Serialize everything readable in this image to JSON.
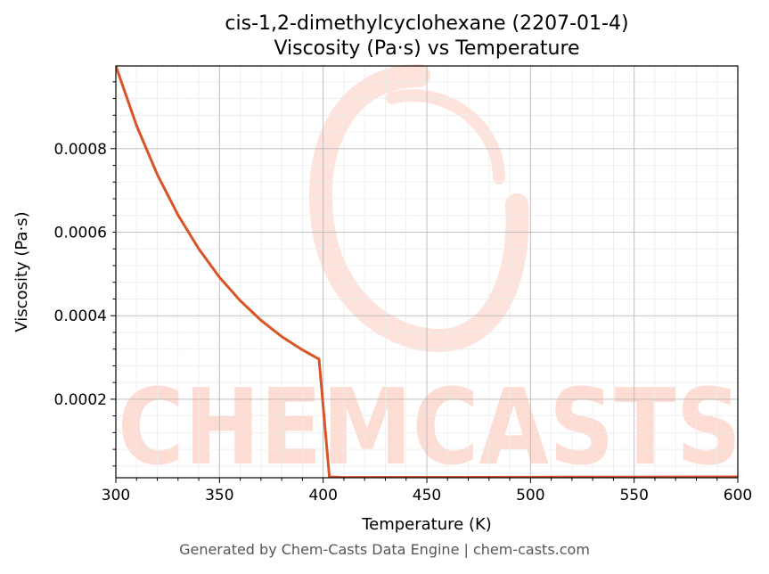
{
  "chart_data": {
    "type": "line",
    "title_line1": "cis-1,2-dimethylcyclohexane (2207-01-4)",
    "title_line2": "Viscosity (Pa·s) vs Temperature",
    "xlabel": "Temperature (K)",
    "ylabel": "Viscosity (Pa·s)",
    "xlim": [
      300,
      600
    ],
    "ylim": [
      1.2e-05,
      0.000998
    ],
    "xticks": [
      300,
      350,
      400,
      450,
      500,
      550,
      600
    ],
    "xtick_labels": [
      "300",
      "350",
      "400",
      "450",
      "500",
      "550",
      "600"
    ],
    "yticks": [
      0.0002,
      0.0004,
      0.0006,
      0.0008
    ],
    "ytick_labels": [
      "0.0002",
      "0.0004",
      "0.0006",
      "0.0008"
    ],
    "grid": true,
    "line_color": "#d95425",
    "x": [
      300,
      310,
      320,
      330,
      340,
      350,
      360,
      370,
      380,
      390,
      398,
      403,
      410,
      450,
      500,
      550,
      600
    ],
    "y": [
      0.000998,
      0.000855,
      0.000738,
      0.000641,
      0.00056,
      0.000492,
      0.000436,
      0.000389,
      0.00035,
      0.000318,
      0.000296,
      1.4e-05,
      1.28e-05,
      1.31e-05,
      1.34e-05,
      1.37e-05,
      1.4e-05
    ]
  },
  "watermark": {
    "text": "CHEMCASTS",
    "color": "#fdd9d0"
  },
  "footer": {
    "text": "Generated by Chem-Casts Data Engine | chem-casts.com"
  }
}
